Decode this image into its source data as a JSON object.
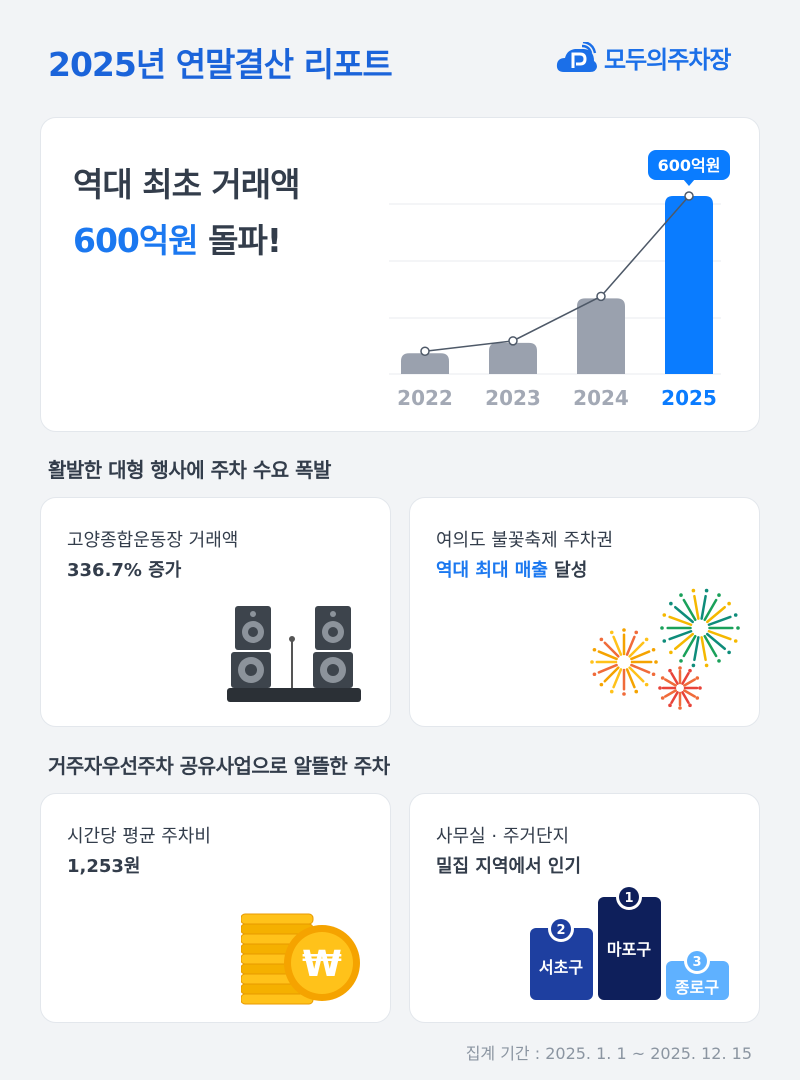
{
  "header": {
    "title": "2025년 연말결산 리포트",
    "logo_text": "모두의주차장"
  },
  "hero": {
    "line1": "역대 최초 거래액",
    "highlight": "600억원",
    "line2_rest": " 돌파!",
    "callout": "600억원"
  },
  "chart_data": {
    "type": "bar",
    "categories": [
      "2022",
      "2023",
      "2024",
      "2025"
    ],
    "values": [
      70,
      105,
      255,
      600
    ],
    "unit": "억원",
    "highlighted": "2025",
    "overlay": "line",
    "grid": true,
    "colors": {
      "bar": "#9aa1ae",
      "highlight": "#0a7cff",
      "line": "#4e5968"
    }
  },
  "section1": {
    "title": "활발한 대형 행사에 주차 수요 폭발",
    "card1": {
      "line1": "고양종합운동장 거래액",
      "line2_blue": "336.7% 증가",
      "icon": "speakers-icon"
    },
    "card2": {
      "line1": "여의도 불꽃축제 주차권",
      "line2_blue": "역대 최대 매출",
      "line2_rest": " 달성",
      "icon": "fireworks-icon"
    }
  },
  "section2": {
    "title": "거주자우선주차 공유사업으로 알뜰한 주차",
    "card1": {
      "line1": "시간당 평균 주차비",
      "line2_blue": "1,253원",
      "icon": "won-coins-icon",
      "coin_symbol": "₩"
    },
    "card2": {
      "line1": "사무실 · 주거단지",
      "line2_blue": "밀집 지역에서 인기",
      "podium": [
        {
          "rank": "1",
          "name": "마포구"
        },
        {
          "rank": "2",
          "name": "서초구"
        },
        {
          "rank": "3",
          "name": "종로구"
        }
      ]
    }
  },
  "footer": {
    "period": "집계 기간 : 2025. 1. 1 ~ 2025. 12. 15"
  },
  "colors": {
    "brand": "#1b64da",
    "accent": "#0a7cff"
  }
}
